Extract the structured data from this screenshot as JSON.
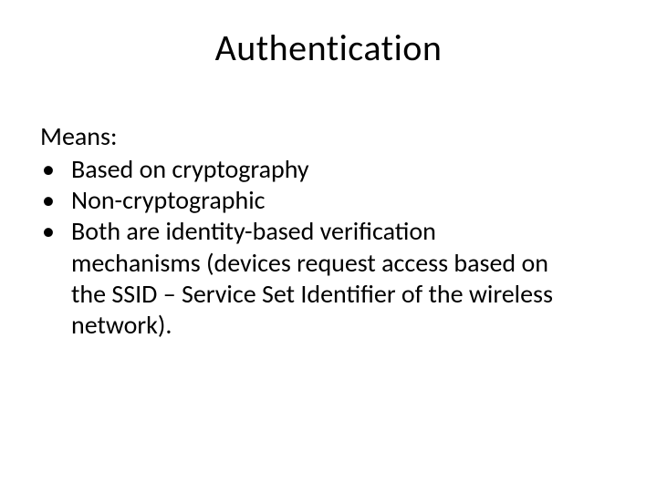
{
  "slide": {
    "title": "Authentication",
    "means_label": "Means:",
    "bullets": {
      "b1": "Based on cryptography",
      "b2": "Non-cryptographic",
      "b3": "Both are identity-based verification",
      "b3_cont1": "mechanisms (devices request access based on",
      "b3_cont2": "the SSID – Service Set Identifier of the wireless",
      "b3_cont3": "network)."
    },
    "bullet_char": "•"
  },
  "style": {
    "background_color": "#ffffff",
    "text_color": "#000000",
    "title_fontsize": 40,
    "body_fontsize": 28,
    "font_family": "Calibri"
  }
}
